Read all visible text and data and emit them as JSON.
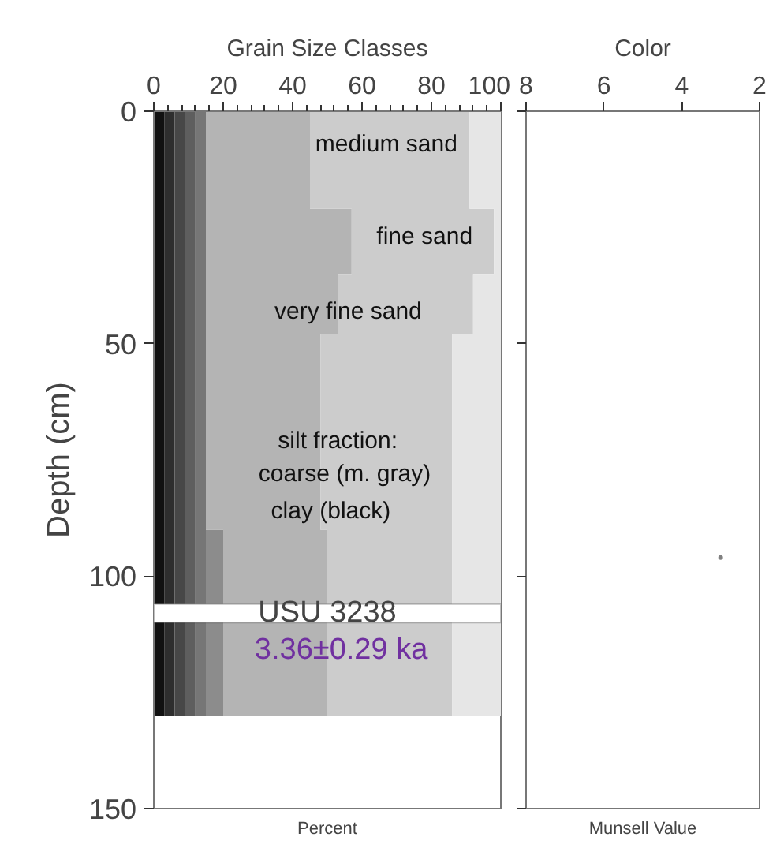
{
  "chart_data": [
    {
      "type": "area",
      "stacked": true,
      "orientation": "horizontal",
      "title": "Grain Size Classes",
      "xlabel": "Percent",
      "ylabel": "Depth (cm)",
      "x": [
        0,
        21,
        21,
        35,
        35,
        48,
        48,
        90,
        90,
        130
      ],
      "series": [
        {
          "color": "#111111",
          "values": [
            3,
            3,
            3,
            3,
            3,
            3,
            3,
            3,
            3,
            3
          ]
        },
        {
          "color": "#2e2e2e",
          "values": [
            3,
            3,
            3,
            3,
            3,
            3,
            3,
            3,
            3,
            3
          ]
        },
        {
          "color": "#474747",
          "values": [
            3,
            3,
            3,
            3,
            3,
            3,
            3,
            3,
            3,
            3
          ]
        },
        {
          "color": "#5e5e5e",
          "values": [
            3,
            3,
            3,
            3,
            3,
            3,
            3,
            3,
            3,
            3
          ]
        },
        {
          "color": "#767676",
          "values": [
            3,
            3,
            3,
            3,
            3,
            3,
            3,
            3,
            3,
            3
          ]
        },
        {
          "color": "#8c8c8c",
          "values": [
            0,
            0,
            0,
            0,
            0,
            0,
            0,
            0,
            5,
            5
          ]
        },
        {
          "color": "#b4b4b4",
          "values": [
            30,
            30,
            42,
            42,
            38,
            38,
            33,
            33,
            30,
            30
          ]
        },
        {
          "color": "#cccccc",
          "values": [
            46,
            46,
            41,
            41,
            39,
            39,
            38,
            38,
            36,
            36
          ]
        },
        {
          "color": "#e6e6e6",
          "values": [
            9,
            9,
            2,
            2,
            8,
            8,
            14,
            14,
            14,
            14
          ]
        }
      ],
      "xlim": [
        0,
        100
      ],
      "xticks": [
        0,
        {
          "value": 4,
          "label": null
        },
        {
          "value": 8,
          "label": null
        },
        {
          "value": 12,
          "label": null
        },
        {
          "value": 16,
          "label": null
        },
        20,
        {
          "value": 24,
          "label": null
        },
        {
          "value": 28,
          "label": null
        },
        {
          "value": 32,
          "label": null
        },
        {
          "value": 36,
          "label": null
        },
        40,
        {
          "value": 44,
          "label": null
        },
        {
          "value": 48,
          "label": null
        },
        {
          "value": 52,
          "label": null
        },
        {
          "value": 56,
          "label": null
        },
        60,
        {
          "value": 64,
          "label": null
        },
        {
          "value": 68,
          "label": null
        },
        {
          "value": 72,
          "label": null
        },
        {
          "value": 76,
          "label": null
        },
        80,
        {
          "value": 84,
          "label": null
        },
        {
          "value": 88,
          "label": null
        },
        {
          "value": 92,
          "label": null
        },
        {
          "value": 96,
          "label": null
        },
        100
      ],
      "ylim": [
        150,
        0
      ],
      "yticks": [
        0,
        50,
        100,
        150
      ],
      "bands": [
        {
          "axis": "y",
          "from": 106,
          "to": 110,
          "label": "USU 3238",
          "color": "#ffffff"
        }
      ],
      "annotations": [
        "medium sand",
        "fine sand",
        "very fine sand",
        "silt fraction:",
        "coarse (m. gray)",
        "clay (black)",
        "3.36±0.29 ka"
      ]
    },
    {
      "type": "scatter",
      "title": "Color",
      "xlabel": "Munsell Value",
      "tick_labels": "x",
      "series": [
        {
          "color": "#808080",
          "x": [
            3
          ],
          "values": [
            96
          ]
        }
      ],
      "xlim": [
        8,
        2
      ],
      "xticks": [
        8,
        6,
        4,
        2
      ],
      "ylim": [
        150,
        0
      ],
      "yticks": [
        0,
        50,
        100,
        150
      ]
    }
  ]
}
